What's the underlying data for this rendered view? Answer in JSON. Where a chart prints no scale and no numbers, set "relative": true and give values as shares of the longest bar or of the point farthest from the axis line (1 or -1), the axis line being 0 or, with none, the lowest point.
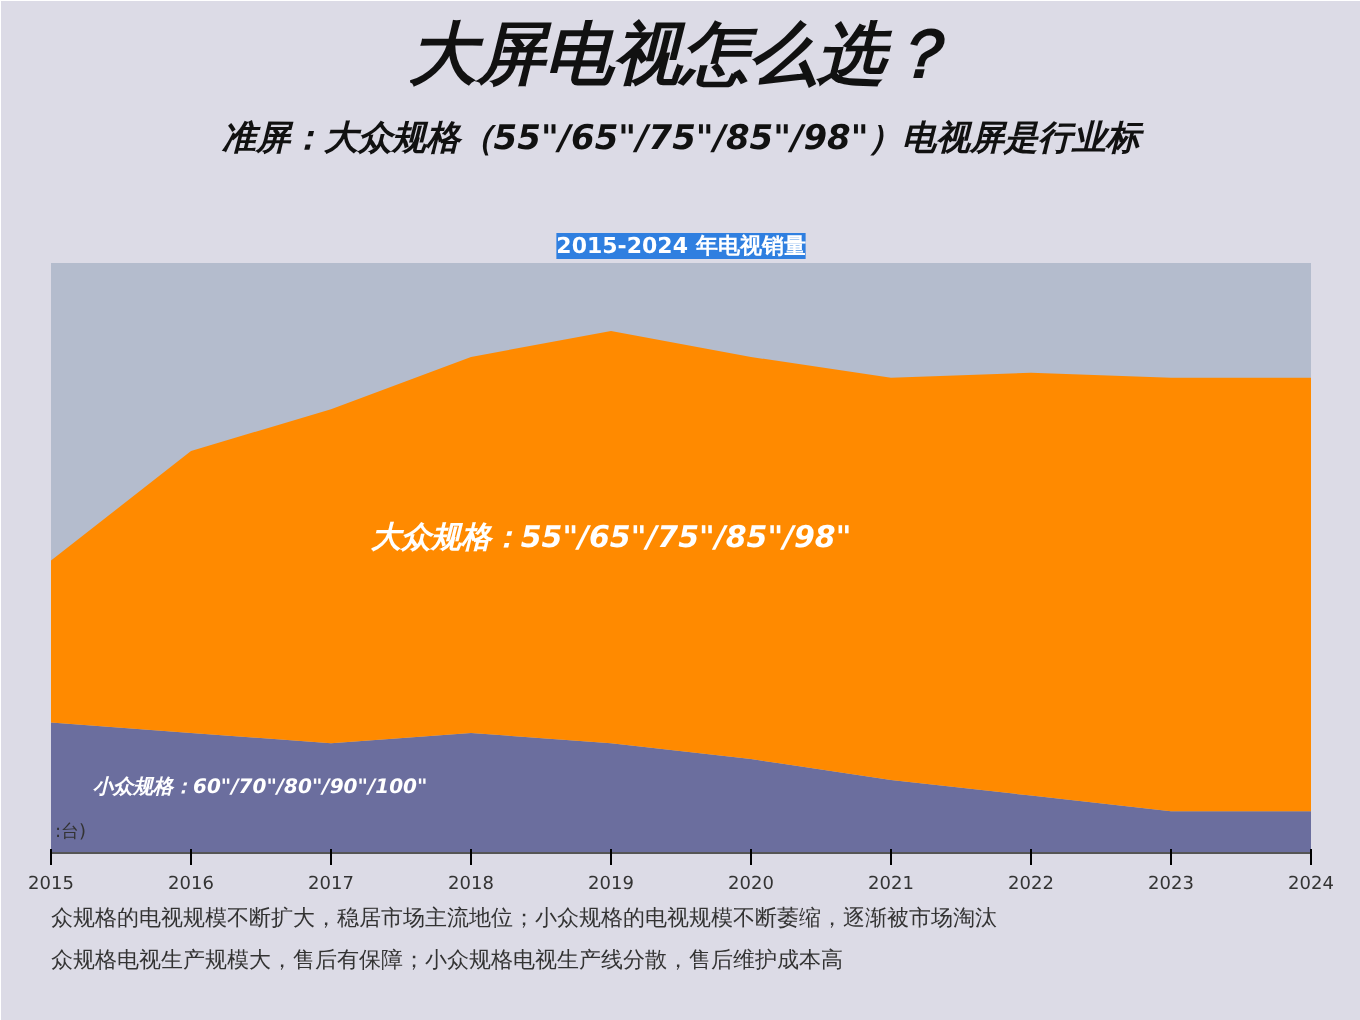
{
  "chart_data": {
    "type": "area",
    "stacked": true,
    "relative": true,
    "title": "大屏电视怎么选？",
    "subtitle": "准屏：大众规格（55\"/65\"/75\"/85\"/98\"）电视屏是行业标",
    "legend_title": "2015-2024 年电视销量",
    "ylabel": ":台)",
    "x": [
      2015,
      2016,
      2017,
      2018,
      2019,
      2020,
      2021,
      2022,
      2023,
      2024
    ],
    "xlim": [
      2015,
      2024
    ],
    "xticks": [
      2015,
      2016,
      2017,
      2018,
      2019,
      2020,
      2021,
      2022,
      2023,
      2024
    ],
    "series": [
      {
        "name": "小众规格：60\"/70\"/80\"/90\"/100\"",
        "color": "#6b6e9e",
        "values": [
          0.25,
          0.23,
          0.21,
          0.23,
          0.21,
          0.18,
          0.14,
          0.11,
          0.08,
          0.08
        ]
      },
      {
        "name": "大众规格：55\"/65\"/75\"/85\"/98\"",
        "color": "#ff8a00",
        "values": [
          0.31,
          0.54,
          0.64,
          0.72,
          0.79,
          0.77,
          0.77,
          0.81,
          0.83,
          0.83
        ]
      }
    ],
    "annotations": [
      "众规格的电视规模不断扩大，稳居市场主流地位；小众规格的电视规模不断萎缩，逐渐被市场淘汰",
      "众规格电视生产规模大，售后有保障；小众规格电视生产线分散，售后维护成本高"
    ]
  }
}
